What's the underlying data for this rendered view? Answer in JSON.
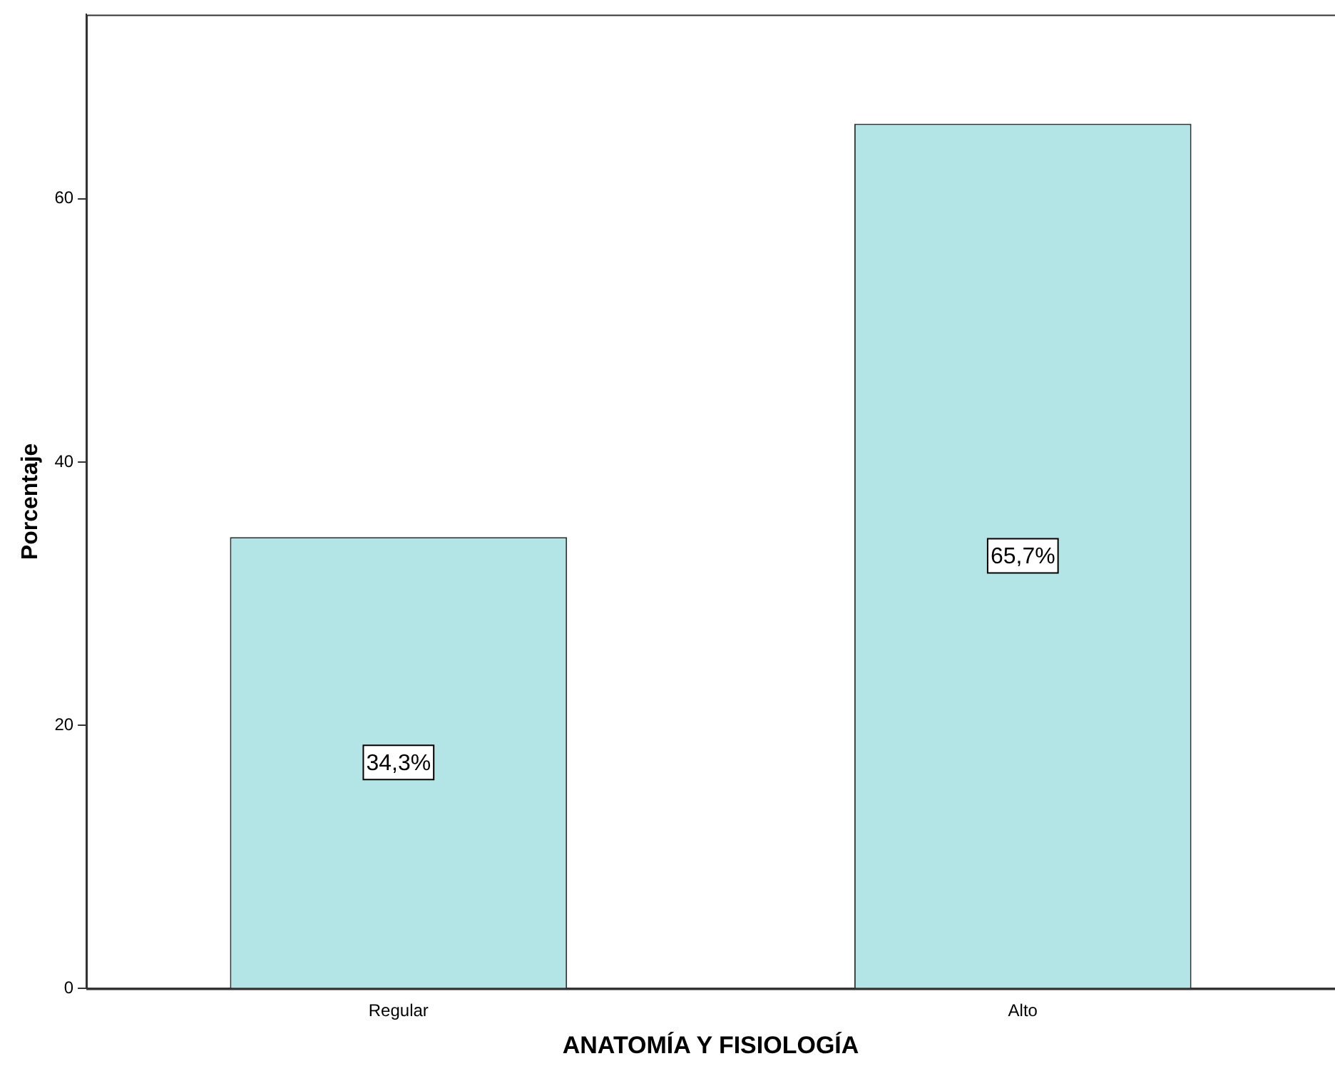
{
  "chart_data": {
    "type": "bar",
    "xlabel": "ANATOMÍA Y FISIOLOGÍA",
    "ylabel": "Porcentaje",
    "categories": [
      "Regular",
      "Alto"
    ],
    "values": [
      34.3,
      65.7
    ],
    "color": "#b3e4e6",
    "value_labels": [
      "34,3%",
      "65,7%"
    ],
    "ylim": [
      0,
      74
    ],
    "yticks": [
      0,
      20,
      40,
      60
    ],
    "grid": false,
    "legend": false
  }
}
